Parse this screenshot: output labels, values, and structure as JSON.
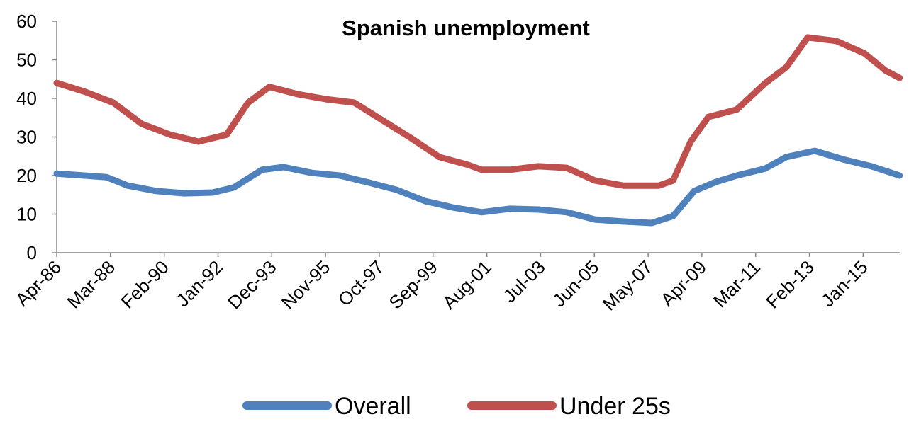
{
  "chart_data": {
    "type": "line",
    "title": "Spanish unemployment",
    "xlabel": "",
    "ylabel": "",
    "ylim": [
      0,
      60
    ],
    "yticks": [
      "0",
      "10",
      "20",
      "30",
      "40",
      "50",
      "60"
    ],
    "xlim": [
      1986.25,
      2016.33
    ],
    "xtick_labels": [
      "Apr-86",
      "Mar-88",
      "Feb-90",
      "Jan-92",
      "Dec-93",
      "Nov-95",
      "Oct-97",
      "Sep-99",
      "Aug-01",
      "Jul-03",
      "Jun-05",
      "May-07",
      "Apr-09",
      "Mar-11",
      "Feb-13",
      "Jan-15"
    ],
    "xtick_interval_months": 23,
    "grid": false,
    "legend_position": "bottom",
    "series": [
      {
        "name": "Overall",
        "color": "#4f81bd",
        "x": [
          1986.25,
          1988.02,
          1988.78,
          1989.79,
          1990.8,
          1991.81,
          1992.56,
          1993.57,
          1994.33,
          1995.34,
          1996.35,
          1997.36,
          1998.37,
          1999.38,
          2000.39,
          2001.4,
          2002.41,
          2003.42,
          2004.43,
          2005.44,
          2006.45,
          2007.46,
          2008.22,
          2008.98,
          2009.73,
          2010.49,
          2011.5,
          2012.26,
          2013.27,
          2014.28,
          2015.29,
          2016.3
        ],
        "values": [
          20.5,
          19.6,
          17.4,
          16.0,
          15.4,
          15.6,
          16.9,
          21.5,
          22.2,
          20.7,
          20.0,
          18.2,
          16.3,
          13.4,
          11.7,
          10.5,
          11.4,
          11.2,
          10.5,
          8.6,
          8.1,
          7.7,
          9.5,
          16.0,
          18.3,
          20.0,
          21.8,
          24.8,
          26.4,
          24.2,
          22.4,
          20.0
        ]
      },
      {
        "name": "Under 25s",
        "color": "#c0504d",
        "x": [
          1986.25,
          1987.26,
          1988.27,
          1989.28,
          1990.29,
          1991.3,
          1992.31,
          1993.07,
          1993.83,
          1994.84,
          1995.85,
          1996.86,
          1997.87,
          1998.88,
          1999.89,
          2000.9,
          2001.4,
          2002.41,
          2003.42,
          2004.43,
          2005.44,
          2006.45,
          2007.71,
          2008.22,
          2008.85,
          2009.48,
          2010.49,
          2011.5,
          2012.26,
          2013.02,
          2014.03,
          2015.04,
          2015.8,
          2016.3
        ],
        "values": [
          44.0,
          41.7,
          38.9,
          33.4,
          30.6,
          28.8,
          30.6,
          38.9,
          43.0,
          41.1,
          39.8,
          38.9,
          34.3,
          29.7,
          24.8,
          22.8,
          21.5,
          21.5,
          22.4,
          22.0,
          18.7,
          17.4,
          17.4,
          18.7,
          28.8,
          35.2,
          37.1,
          43.9,
          48.1,
          55.8,
          54.9,
          51.7,
          47.2,
          45.3
        ]
      }
    ]
  }
}
